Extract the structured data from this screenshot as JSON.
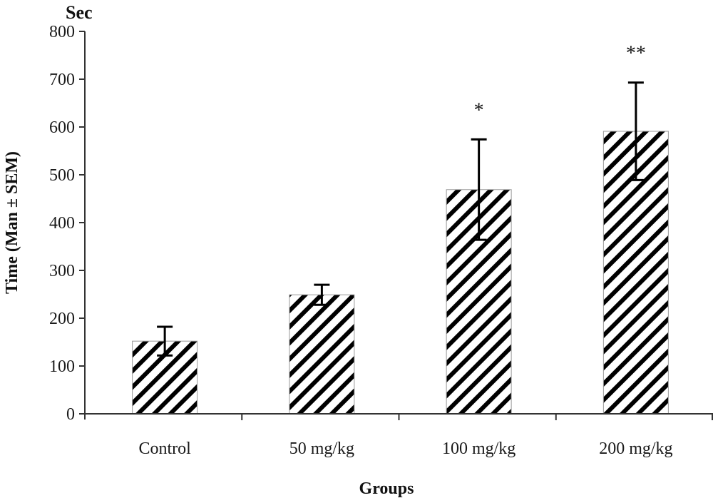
{
  "chart_data": {
    "type": "bar",
    "title": "",
    "unit_label": "Sec",
    "xlabel": "Groups",
    "ylabel": "Time (Man ± SEM)",
    "ylim": [
      0,
      800
    ],
    "yticks": [
      0,
      100,
      200,
      300,
      400,
      500,
      600,
      700,
      800
    ],
    "grid": false,
    "legend": null,
    "categories": [
      "Control",
      "50 mg/kg",
      "100 mg/kg",
      "200 mg/kg"
    ],
    "values": [
      152,
      249,
      469,
      591
    ],
    "errors": [
      30,
      21,
      105,
      102
    ],
    "significance": [
      "",
      "",
      "*",
      "**"
    ],
    "bar_fill": "diagonal-hatch",
    "colors": {
      "hatch": "#000000",
      "bar_border": "#999999",
      "axis": "#333333"
    }
  }
}
